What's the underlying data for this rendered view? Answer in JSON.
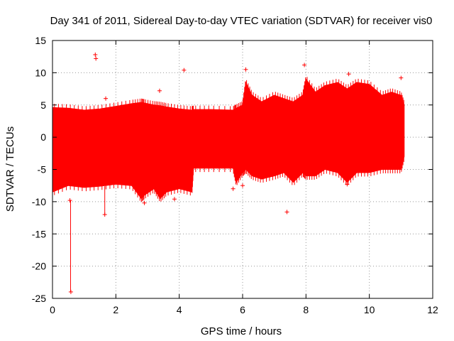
{
  "chart_data": {
    "type": "scatter",
    "title": "Day 341 of 2011, Sidereal Day-to-day VTEC variation (SDTVAR) for receiver vis0",
    "xlabel": "GPS time / hours",
    "ylabel": "SDTVAR / TECUs",
    "xlim": [
      0,
      12
    ],
    "ylim": [
      -25,
      15
    ],
    "xticks": [
      0,
      2,
      4,
      6,
      8,
      10,
      12
    ],
    "yticks": [
      15,
      10,
      5,
      0,
      -5,
      -10,
      -15,
      -20,
      -25
    ],
    "xtick_labels": [
      "0",
      "2",
      "4",
      "6",
      "8",
      "10",
      "12"
    ],
    "ytick_labels": [
      "15",
      "10",
      "5",
      "0",
      "-5",
      "-10",
      "-15",
      "-20",
      "-25"
    ],
    "grid": true,
    "series": [
      {
        "name": "SDTVAR",
        "color": "#ff0000",
        "envelope": {
          "x": [
            0.0,
            0.5,
            1.0,
            1.5,
            2.0,
            2.5,
            2.8,
            2.9,
            3.2,
            3.4,
            3.6,
            4.0,
            4.4,
            4.45,
            5.0,
            5.7,
            5.8,
            6.0,
            6.1,
            6.3,
            6.6,
            7.0,
            7.3,
            7.6,
            7.9,
            8.0,
            8.3,
            8.6,
            9.0,
            9.3,
            9.6,
            10.0,
            10.4,
            10.7,
            11.0,
            11.1
          ],
          "upper": [
            4.6,
            4.5,
            4.2,
            4.4,
            4.8,
            5.2,
            5.4,
            5.3,
            5.0,
            4.9,
            4.7,
            4.4,
            4.2,
            4.3,
            4.3,
            4.2,
            4.5,
            5.0,
            8.5,
            6.5,
            5.5,
            6.5,
            6.0,
            5.5,
            6.5,
            9.0,
            7.0,
            8.0,
            8.5,
            7.5,
            8.5,
            8.2,
            6.5,
            7.0,
            6.5,
            5.0
          ],
          "lower": [
            -8.5,
            -7.5,
            -7.8,
            -7.6,
            -7.3,
            -7.5,
            -9.5,
            -9.0,
            -8.0,
            -9.5,
            -8.5,
            -8.0,
            -8.5,
            -4.8,
            -4.8,
            -4.8,
            -7.0,
            -5.5,
            -5.0,
            -6.0,
            -6.5,
            -6.0,
            -5.5,
            -7.0,
            -5.5,
            -6.0,
            -6.0,
            -5.0,
            -5.5,
            -7.0,
            -5.5,
            -5.5,
            -5.0,
            -5.0,
            -5.0,
            -3.0
          ]
        },
        "outliers": [
          {
            "x": 1.35,
            "y": 12.8
          },
          {
            "x": 1.37,
            "y": 12.2
          },
          {
            "x": 4.15,
            "y": 10.4
          },
          {
            "x": 3.85,
            "y": -9.6
          },
          {
            "x": 7.4,
            "y": -11.6
          },
          {
            "x": 0.55,
            "y": -9.8
          },
          {
            "x": 0.58,
            "y": -24.0
          },
          {
            "x": 1.65,
            "y": -12.0
          },
          {
            "x": 1.68,
            "y": 6.0
          },
          {
            "x": 3.38,
            "y": 7.2
          },
          {
            "x": 6.1,
            "y": 10.5
          },
          {
            "x": 7.95,
            "y": 11.2
          },
          {
            "x": 9.35,
            "y": 9.8
          },
          {
            "x": 11.0,
            "y": 9.2
          },
          {
            "x": 6.0,
            "y": -7.5
          },
          {
            "x": 9.3,
            "y": -7.3
          },
          {
            "x": 2.9,
            "y": -10.2
          },
          {
            "x": 5.7,
            "y": -8.0
          }
        ]
      }
    ]
  }
}
